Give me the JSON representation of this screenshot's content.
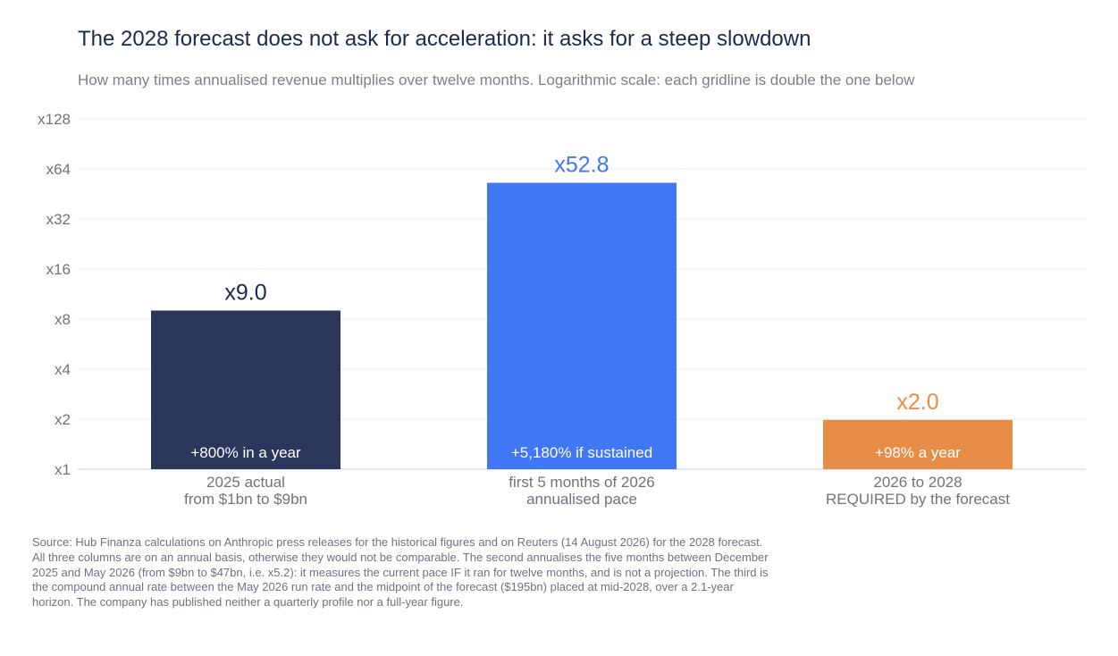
{
  "title": "The 2028 forecast does not ask for acceleration: it asks for a steep slowdown",
  "subtitle": "How many times annualised revenue multiplies over twelve months. Logarithmic scale: each gridline is double the one below",
  "source": "Source: Hub Finanza calculations on Anthropic press releases for the historical figures and on Reuters (14 August 2026) for the 2028 forecast. All three columns are on an annual basis, otherwise they would not be comparable. The second annualises the five months between December 2025 and May 2026 (from $9bn to $47bn, i.e. x5.2): it measures the current pace IF it ran for twelve months, and is not a projection. The third is the compound annual rate between the May 2026 run rate and the midpoint of the forecast ($195bn) placed at mid-2028, over a 2.1-year horizon. The company has published neither a quarterly profile nor a full-year figure.",
  "chart_data": {
    "type": "bar",
    "yscale": "log2",
    "ylim": [
      1,
      128
    ],
    "grid": true,
    "yticks": [
      1,
      2,
      4,
      8,
      16,
      32,
      64,
      128
    ],
    "ytick_labels": [
      "x1",
      "x2",
      "x4",
      "x8",
      "x16",
      "x32",
      "x64",
      "x128"
    ],
    "categories": [
      [
        "2025 actual",
        "from $1bn to $9bn"
      ],
      [
        "first 5 months of 2026",
        "annualised pace"
      ],
      [
        "2026 to 2028",
        "REQUIRED by the forecast"
      ]
    ],
    "values": [
      9.0,
      52.8,
      1.98
    ],
    "value_labels": [
      "x9.0",
      "x52.8",
      "x2.0"
    ],
    "inner_labels": [
      "+800% in a year",
      "+5,180% if sustained",
      "+98% a year"
    ],
    "colors": [
      "#2b365c",
      "#3f77f5",
      "#e88d47"
    ]
  }
}
